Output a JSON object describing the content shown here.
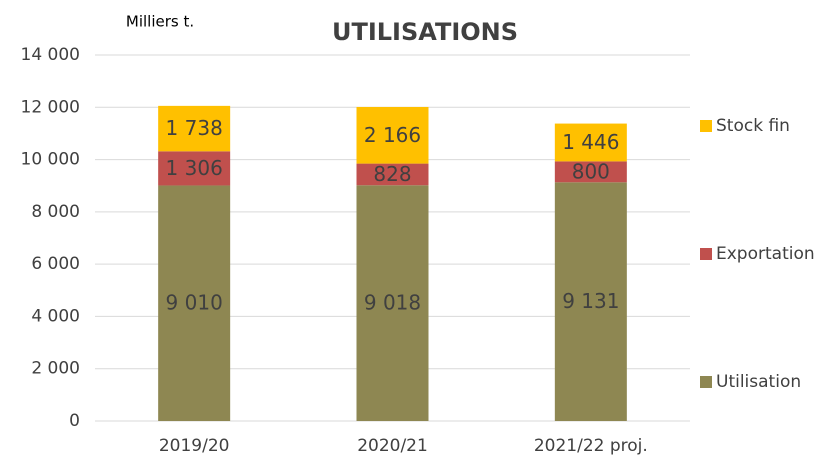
{
  "chart_data": {
    "type": "stacked_bar",
    "title": "UTILISATIONS",
    "y_axis_label": "Milliers t.",
    "categories": [
      "2019/20",
      "2020/21",
      "2021/22 proj."
    ],
    "series": [
      {
        "name": "Utilisation",
        "color": "#8e8752",
        "values": [
          9010,
          9018,
          9131
        ],
        "value_labels": [
          "9 010",
          "9 018",
          "9 131"
        ]
      },
      {
        "name": "Exportation",
        "color": "#c0504d",
        "values": [
          1306,
          828,
          800
        ],
        "value_labels": [
          "1 306",
          "828",
          "800"
        ]
      },
      {
        "name": "Stock fin",
        "color": "#ffc000",
        "values": [
          1738,
          2166,
          1446
        ],
        "value_labels": [
          "1 738",
          "2 166",
          "1 446"
        ]
      }
    ],
    "ylim": [
      0,
      14000
    ],
    "yticks": [
      0,
      {
        "value": 2000,
        "label": "2 000"
      },
      {
        "value": 4000,
        "label": "4 000"
      },
      {
        "value": 6000,
        "label": "6 000"
      },
      {
        "value": 8000,
        "label": "8 000"
      },
      {
        "value": 10000,
        "label": "10 000"
      },
      {
        "value": 12000,
        "label": "12 000"
      },
      {
        "value": 14000,
        "label": "14 000"
      }
    ],
    "grid": true,
    "legend": "right"
  }
}
